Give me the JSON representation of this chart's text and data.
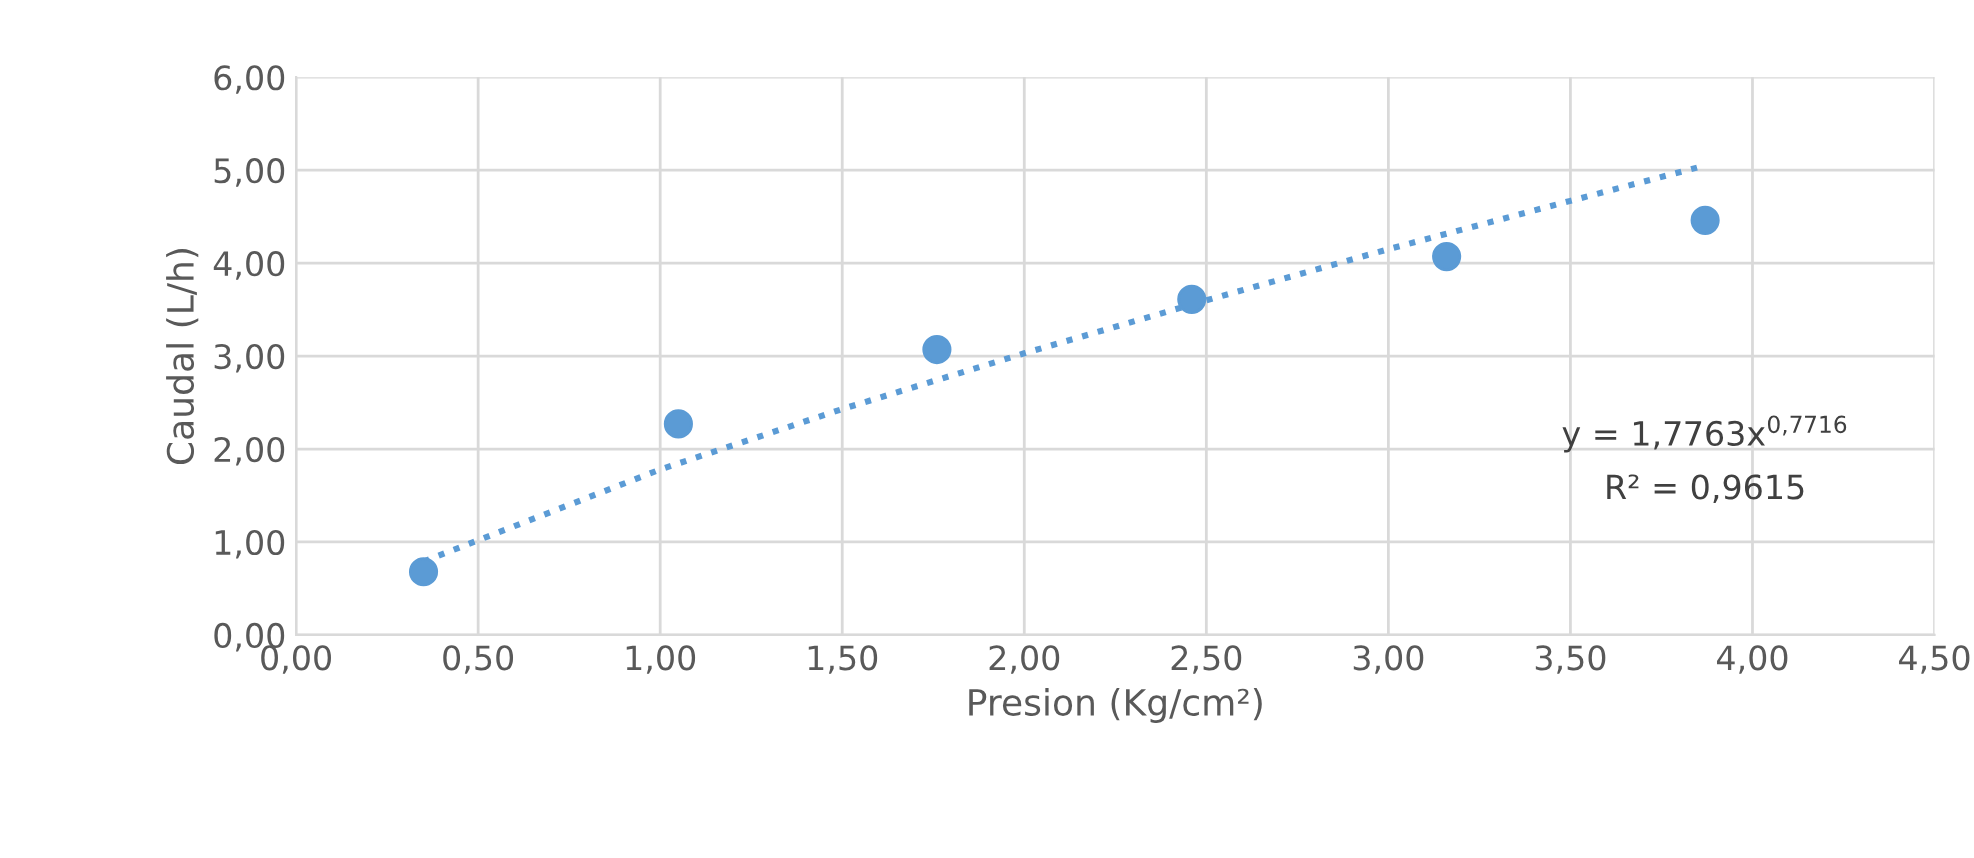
{
  "chart_data": {
    "type": "scatter",
    "xlabel": "Presion (Kg/cm²)",
    "ylabel": "Caudal (L/h)",
    "xlim": [
      0,
      4.5
    ],
    "ylim": [
      0,
      6
    ],
    "xticks": [
      {
        "value": 0,
        "label": "0,00"
      },
      {
        "value": 0.5,
        "label": "0,50"
      },
      {
        "value": 1,
        "label": "1,00"
      },
      {
        "value": 1.5,
        "label": "1,50"
      },
      {
        "value": 2,
        "label": "2,00"
      },
      {
        "value": 2.5,
        "label": "2,50"
      },
      {
        "value": 3,
        "label": "3,00"
      },
      {
        "value": 3.5,
        "label": "3,50"
      },
      {
        "value": 4,
        "label": "4,00"
      },
      {
        "value": 4.5,
        "label": "4,50"
      }
    ],
    "yticks": [
      {
        "value": 0,
        "label": "0,00"
      },
      {
        "value": 1,
        "label": "1,00"
      },
      {
        "value": 2,
        "label": "2,00"
      },
      {
        "value": 3,
        "label": "3,00"
      },
      {
        "value": 4,
        "label": "4,00"
      },
      {
        "value": 5,
        "label": "5,00"
      },
      {
        "value": 6,
        "label": "6,00"
      }
    ],
    "grid": true,
    "marker": "circle",
    "x": [
      0.35,
      1.05,
      1.76,
      2.46,
      3.16,
      3.87
    ],
    "series": [
      {
        "color": "#5b9bd5",
        "values": [
          0.68,
          2.27,
          3.07,
          3.61,
          4.07,
          4.46
        ]
      },
      {
        "type": "line",
        "line_style": "dotted",
        "marker": "none",
        "color": "#5b9bd5",
        "x": [
          0.35,
          1.0,
          1.5,
          2.0,
          2.5,
          3.0,
          3.5,
          3.85
        ],
        "values": [
          0.79,
          1.78,
          2.43,
          3.03,
          3.6,
          4.15,
          4.67,
          5.03
        ]
      }
    ],
    "annotations": [
      "y = 1,7763x$^{0,7716}$",
      "R² = 0,9615"
    ]
  }
}
